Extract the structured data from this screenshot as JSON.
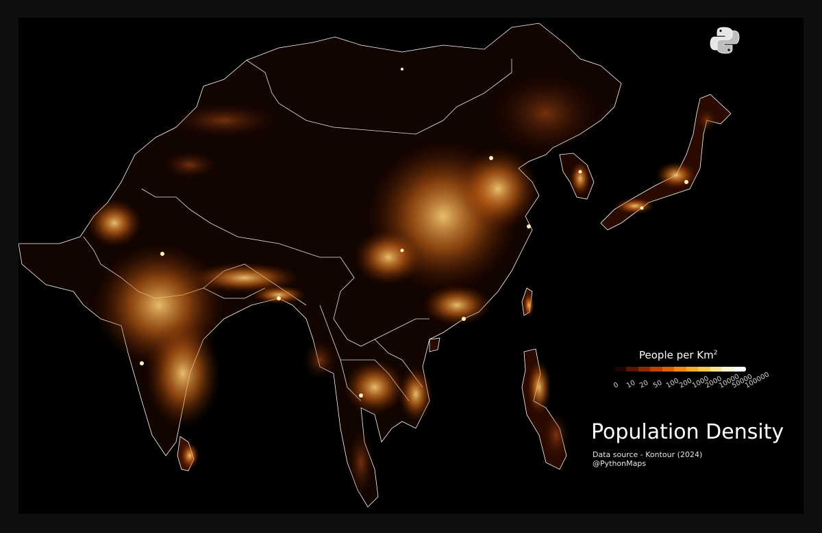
{
  "map": {
    "title": "Population Density",
    "data_source": "Data source - Kontour (2024)",
    "handle": "@PythonMaps",
    "region": "East, South and Southeast Asia",
    "background_color": "#000000",
    "border_color": "#ffffff",
    "logo_icon": "python-logo-icon"
  },
  "legend": {
    "title": "People per Km",
    "title_sup": "2",
    "ticks": [
      "0",
      "10",
      "20",
      "50",
      "100",
      "200",
      "1000",
      "2000",
      "10000",
      "50000",
      "100000"
    ],
    "colors": [
      "#1a0500",
      "#5c1200",
      "#8c2a00",
      "#b84400",
      "#d9630a",
      "#ee8a1c",
      "#f8ab35",
      "#ffc95a",
      "#ffe38e",
      "#fff6d0",
      "#ffffff"
    ]
  }
}
